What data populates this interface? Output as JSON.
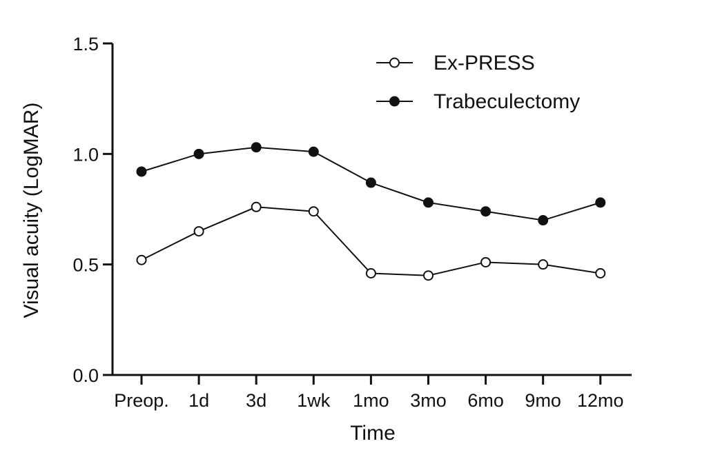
{
  "chart_data": {
    "type": "line",
    "title": "",
    "xlabel": "Time",
    "ylabel": "Visual acuity (LogMAR)",
    "categories": [
      "Preop.",
      "1d",
      "3d",
      "1wk",
      "1mo",
      "3mo",
      "6mo",
      "9mo",
      "12mo"
    ],
    "ylim": [
      0.0,
      1.5
    ],
    "yticks": [
      "0.0",
      "0.5",
      "1.0",
      "1.5"
    ],
    "grid": false,
    "legend_position": "top-right",
    "series": [
      {
        "name": "Ex-PRESS",
        "marker": "open-circle",
        "values": [
          0.52,
          0.65,
          0.76,
          0.74,
          0.46,
          0.45,
          0.51,
          0.5,
          0.46
        ]
      },
      {
        "name": "Trabeculectomy",
        "marker": "filled-circle",
        "values": [
          0.92,
          1.0,
          1.03,
          1.01,
          0.87,
          0.78,
          0.74,
          0.7,
          0.78
        ]
      }
    ],
    "colors": {
      "line": "#111111",
      "background": "#ffffff"
    }
  }
}
